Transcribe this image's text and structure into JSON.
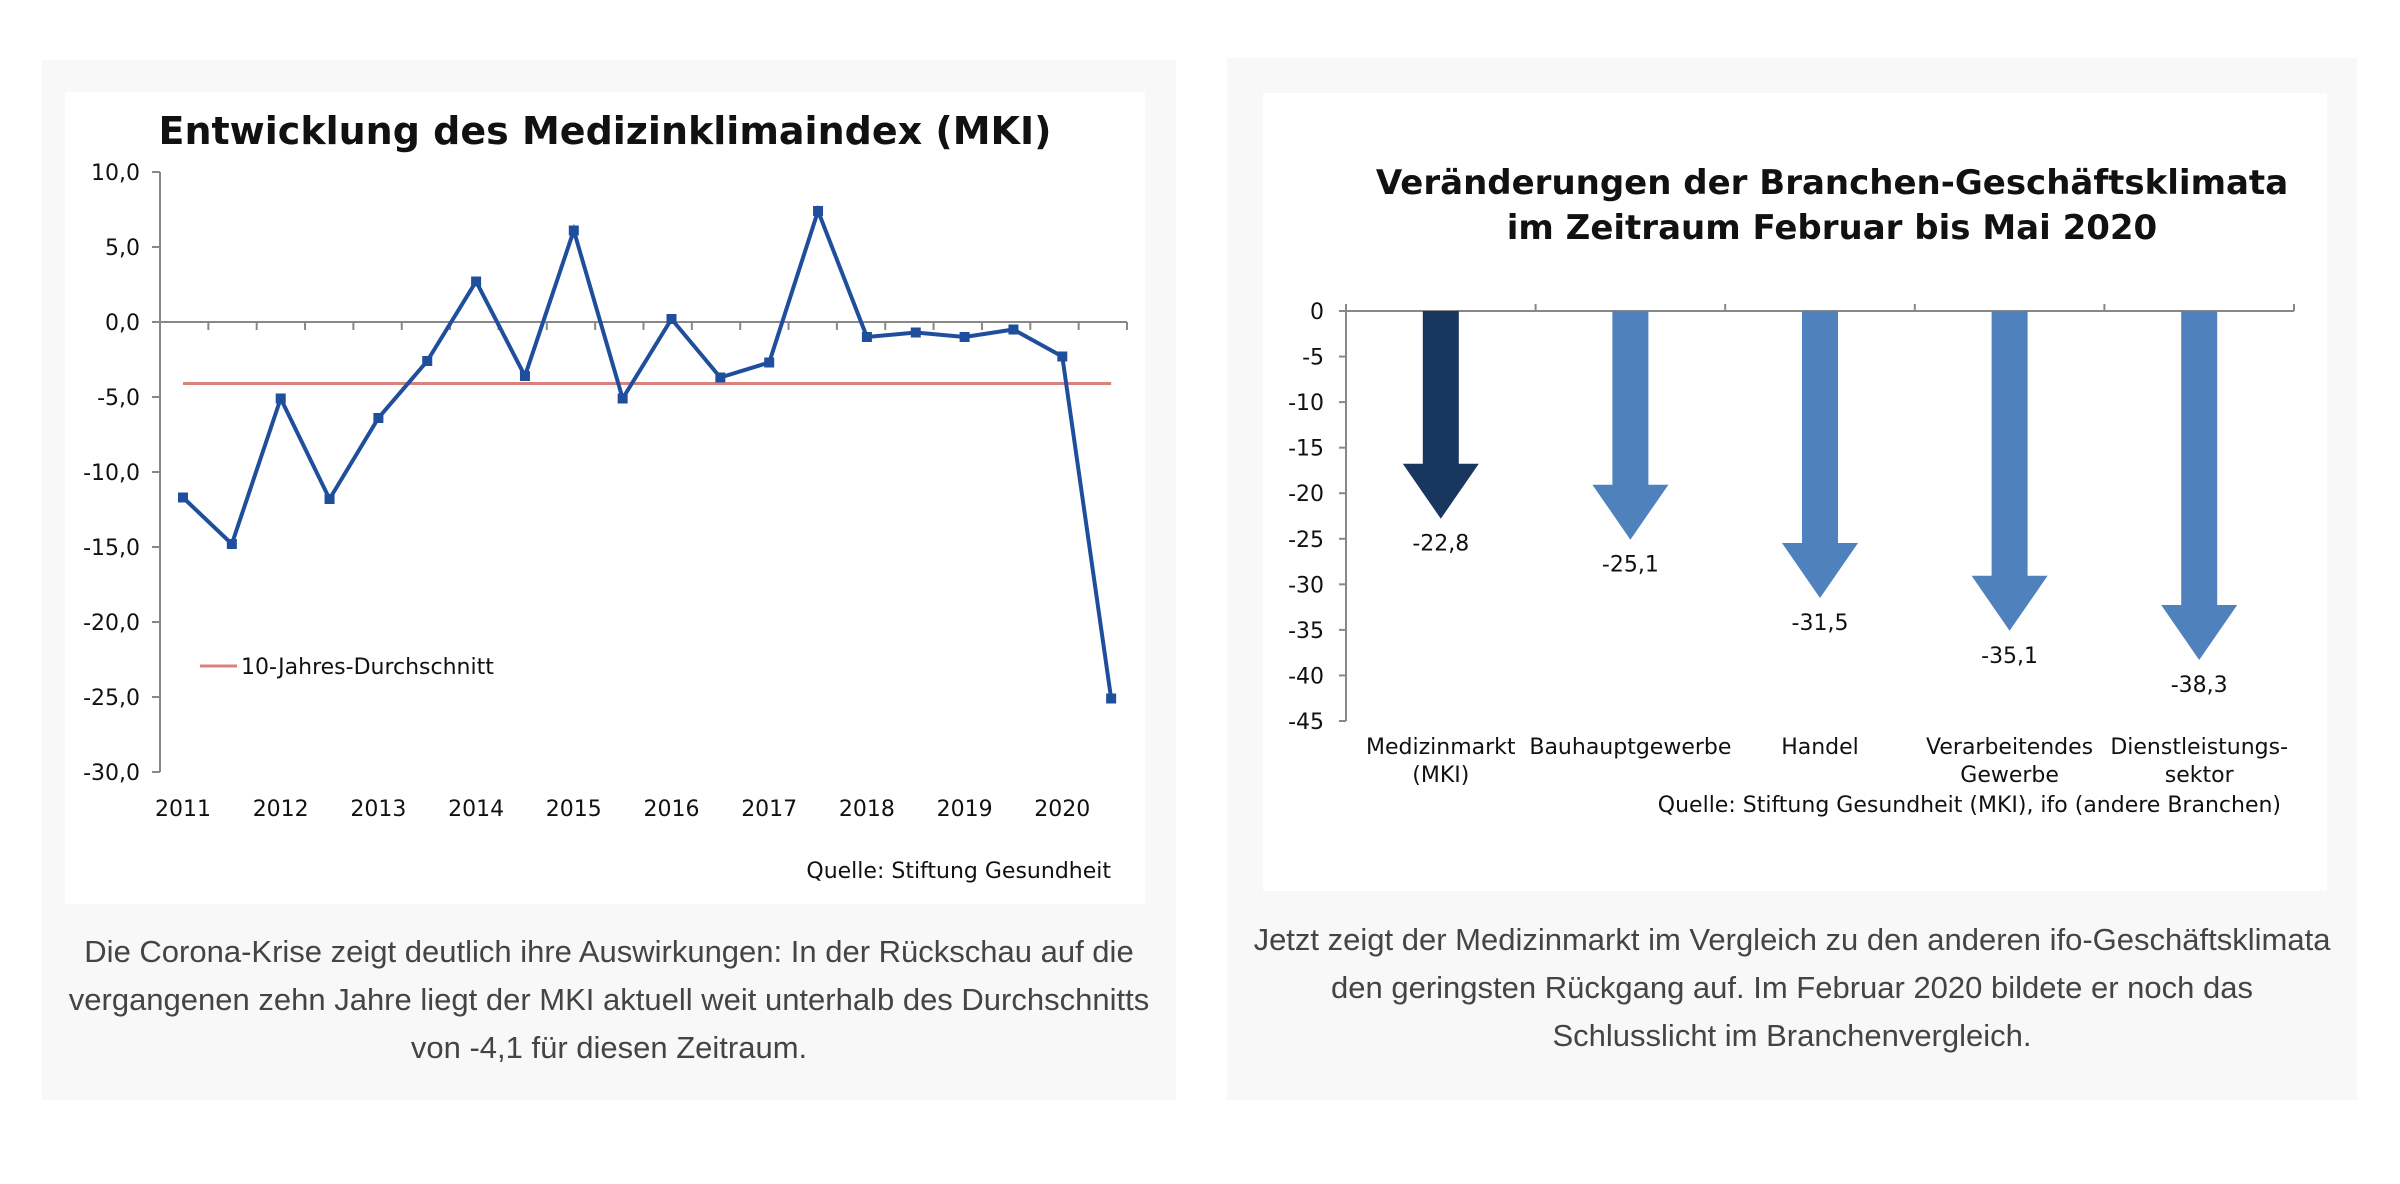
{
  "chart_data": [
    {
      "type": "line",
      "title": "Entwicklung des Medizinklimaindex (MKI)",
      "source": "Quelle: Stiftung Gesundheit",
      "x_ticks": [
        "2011",
        "2012",
        "2013",
        "2014",
        "2015",
        "2016",
        "2017",
        "2018",
        "2019",
        "2020"
      ],
      "y_ticks": [
        "10,0",
        "5,0",
        "0,0",
        "-5,0",
        "-10,0",
        "-15,0",
        "-20,0",
        "-25,0",
        "-30,0"
      ],
      "ylim": [
        -30,
        10
      ],
      "x": [
        2011.0,
        2011.5,
        2012.0,
        2012.5,
        2013.0,
        2013.5,
        2014.0,
        2014.5,
        2015.0,
        2015.5,
        2016.0,
        2016.5,
        2017.0,
        2017.5,
        2018.0,
        2018.5,
        2019.0,
        2019.5,
        2020.0,
        2020.5
      ],
      "series": [
        {
          "values": [
            -11.7,
            -14.8,
            -5.1,
            -11.8,
            -6.4,
            -2.6,
            2.7,
            -3.6,
            6.1,
            -5.1,
            0.2,
            -3.7,
            -2.7,
            7.4,
            -1.0,
            -0.7,
            -1.0,
            -0.5,
            -2.3,
            -25.1
          ],
          "color": "#1f4e9c"
        }
      ],
      "reference_line": {
        "name": "10-Jahres-Durchschnitt",
        "value": -4.1,
        "color": "#d9817e"
      },
      "grid": false,
      "legend_position": "bottom-left"
    },
    {
      "type": "bar",
      "title_lines": [
        "Veränderungen der Branchen-Geschäftsklimata",
        "im Zeitraum Februar bis Mai 2020"
      ],
      "source": "Quelle: Stiftung Gesundheit (MKI), ifo (andere Branchen)",
      "categories": [
        [
          "Medizinmarkt",
          "(MKI)"
        ],
        [
          "Bauhauptgewerbe"
        ],
        [
          "Handel"
        ],
        [
          "Verarbeitendes",
          "Gewerbe"
        ],
        [
          "Dienstleistungs-",
          "sektor"
        ]
      ],
      "values": [
        -22.8,
        -25.1,
        -31.5,
        -35.1,
        -38.3
      ],
      "value_labels": [
        "-22,8",
        "-25,1",
        "-31,5",
        "-35,1",
        "-38,3"
      ],
      "colors": [
        "#17375e",
        "#4f81bd",
        "#4f81bd",
        "#4f81bd",
        "#4f81bd"
      ],
      "y_ticks": [
        "0",
        "-5",
        "-10",
        "-15",
        "-20",
        "-25",
        "-30",
        "-35",
        "-40",
        "-45"
      ],
      "ylim": [
        -45,
        0
      ],
      "grid": false
    }
  ],
  "captions": {
    "left": "Die Corona-Krise zeigt deutlich ihre Auswirkungen: In der Rückschau auf die vergangenen zehn Jahre liegt der MKI aktuell weit unterhalb des Durchschnitts von -4,1 für diesen Zeitraum.",
    "right": "Jetzt zeigt der Medizinmarkt im Vergleich zu den anderen ifo-Geschäftsklimata den geringsten Rückgang auf. Im Februar 2020 bildete er noch das Schlusslicht im Branchenvergleich."
  }
}
